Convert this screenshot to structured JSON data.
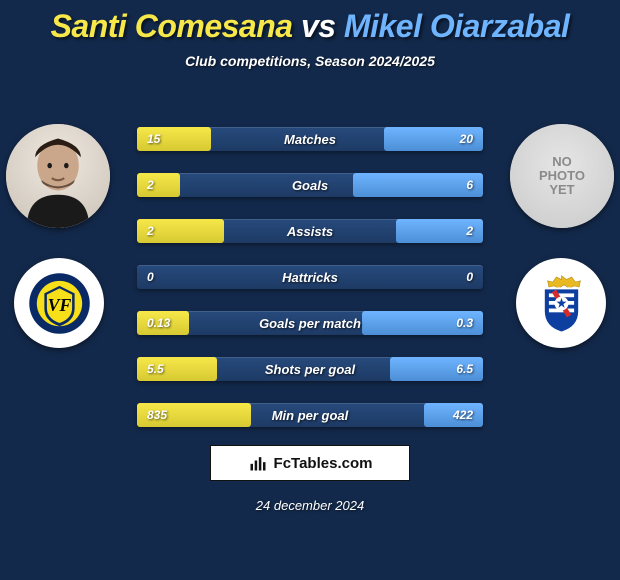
{
  "background_color": "#13294b",
  "title": {
    "player1_name": "Santi Comesana",
    "vs": "vs",
    "player2_name": "Mikel Oiarzabal",
    "player1_color": "#f7e84a",
    "vs_color": "#ffffff",
    "player2_color": "#6fb4ff",
    "fontsize": 32
  },
  "subtitle": "Club competitions, Season 2024/2025",
  "player1": {
    "has_photo": true,
    "crest_colors": {
      "outer": "#0a2a66",
      "inner": "#f7e019",
      "center": "#000000"
    }
  },
  "player2": {
    "has_photo": false,
    "no_photo_text": "NO\nPHOTO\nYET",
    "crest_colors": {
      "outer": "#0c3fa0",
      "stripe": "#ffffff",
      "accent": "#d62b2b",
      "crown": "#e8b923"
    }
  },
  "bar_track_color": "#224273",
  "bar_left_color": "#f7e84a",
  "bar_right_color": "#6fb4ff",
  "bar_half_width": 173,
  "stats": [
    {
      "label": "Matches",
      "left_value": "15",
      "right_value": "20",
      "left_pct": 0.43,
      "right_pct": 0.57
    },
    {
      "label": "Goals",
      "left_value": "2",
      "right_value": "6",
      "left_pct": 0.25,
      "right_pct": 0.75
    },
    {
      "label": "Assists",
      "left_value": "2",
      "right_value": "2",
      "left_pct": 0.5,
      "right_pct": 0.5
    },
    {
      "label": "Hattricks",
      "left_value": "0",
      "right_value": "0",
      "left_pct": 0.0,
      "right_pct": 0.0
    },
    {
      "label": "Goals per match",
      "left_value": "0.13",
      "right_value": "0.3",
      "left_pct": 0.3,
      "right_pct": 0.7
    },
    {
      "label": "Shots per goal",
      "left_value": "5.5",
      "right_value": "6.5",
      "left_pct": 0.46,
      "right_pct": 0.54
    },
    {
      "label": "Min per goal",
      "left_value": "835",
      "right_value": "422",
      "left_pct": 0.66,
      "right_pct": 0.34
    }
  ],
  "footer": {
    "site_name": "FcTables.com"
  },
  "date": "24 december 2024"
}
